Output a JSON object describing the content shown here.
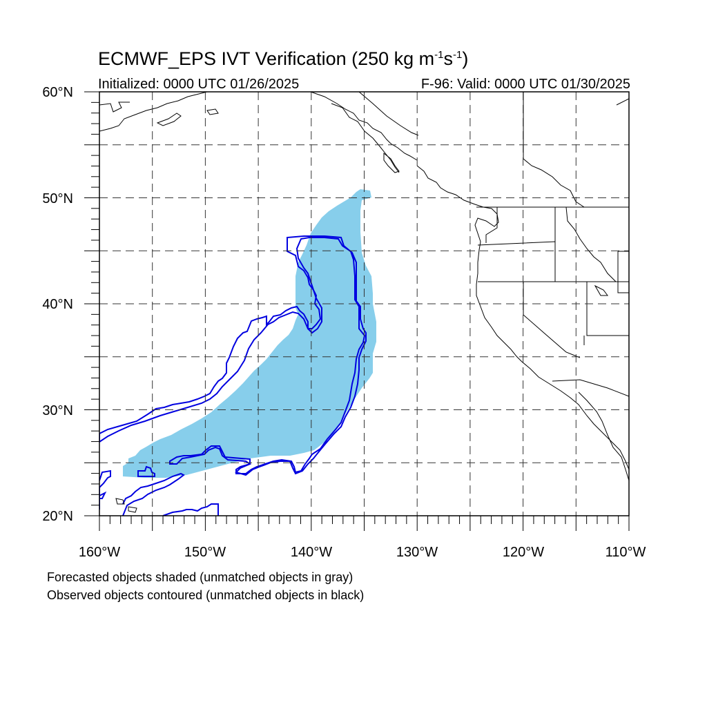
{
  "map": {
    "title_main": "ECMWF_EPS IVT Verification (250 kg m",
    "title_exp1": "-1",
    "title_mid": "s",
    "title_exp2": "-1",
    "title_end": ")",
    "initialized": "Initialized: 0000 UTC 01/26/2025",
    "valid": "F-96: Valid: 0000 UTC 01/30/2025",
    "lat_labels": [
      "60°N",
      "50°N",
      "40°N",
      "30°N",
      "20°N"
    ],
    "lon_labels": [
      "160°W",
      "150°W",
      "140°W",
      "130°W",
      "120°W",
      "110°W"
    ],
    "footnote_1": "Forecasted objects shaded (unmatched objects in gray)",
    "footnote_2": "Observed objects contoured (unmatched objects in black)",
    "colors": {
      "forecast_fill": "#87ceeb",
      "observed_contour": "#0000e0",
      "coastline": "#000000",
      "grid": "#333333"
    }
  }
}
